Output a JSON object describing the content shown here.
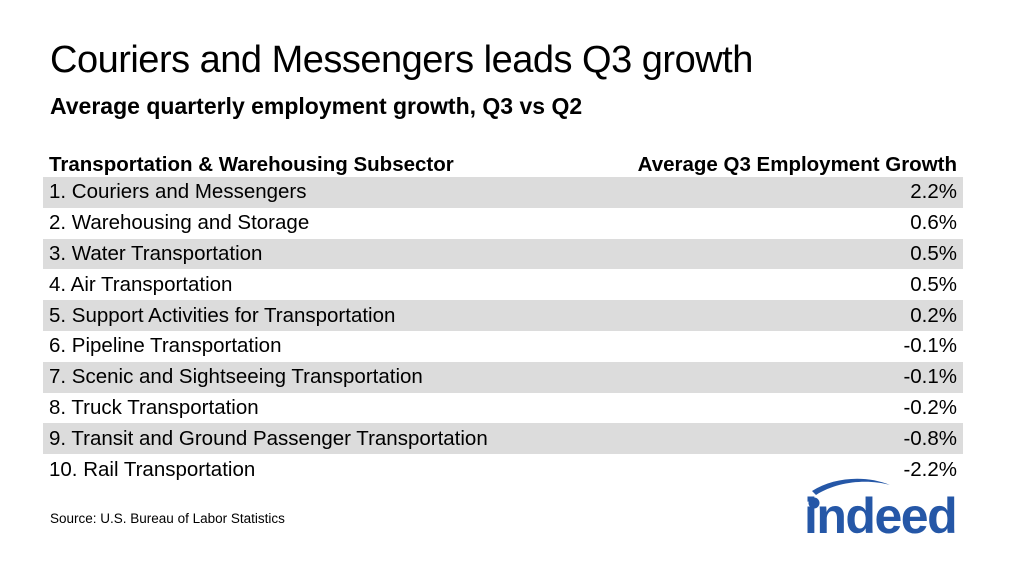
{
  "title": "Couriers and Messengers leads Q3 growth",
  "subtitle": "Average quarterly employment growth, Q3 vs Q2",
  "source": "Source: U.S. Bureau of Labor Statistics",
  "logo_text": "indeed",
  "colors": {
    "row_shade": "#dcdcdc",
    "logo_blue": "#2557a7",
    "text": "#000000"
  },
  "chart_data": {
    "type": "table",
    "title": "Couriers and Messengers leads Q3 growth",
    "subtitle": "Average quarterly employment growth, Q3 vs Q2",
    "columns": [
      "Transportation & Warehousing Subsector",
      "Average Q3 Employment Growth"
    ],
    "rows": [
      {
        "label": "1. Couriers and Messengers",
        "value": "2.2%"
      },
      {
        "label": "2. Warehousing and Storage",
        "value": "0.6%"
      },
      {
        "label": "3. Water Transportation",
        "value": "0.5%"
      },
      {
        "label": "4. Air Transportation",
        "value": "0.5%"
      },
      {
        "label": "5. Support Activities for Transportation",
        "value": "0.2%"
      },
      {
        "label": "6. Pipeline Transportation",
        "value": "-0.1%"
      },
      {
        "label": "7. Scenic and Sightseeing Transportation",
        "value": "-0.1%"
      },
      {
        "label": "8. Truck Transportation",
        "value": "-0.2%"
      },
      {
        "label": "9. Transit and Ground Passenger Transportation",
        "value": "-0.8%"
      },
      {
        "label": "10. Rail Transportation",
        "value": "-2.2%"
      }
    ]
  }
}
